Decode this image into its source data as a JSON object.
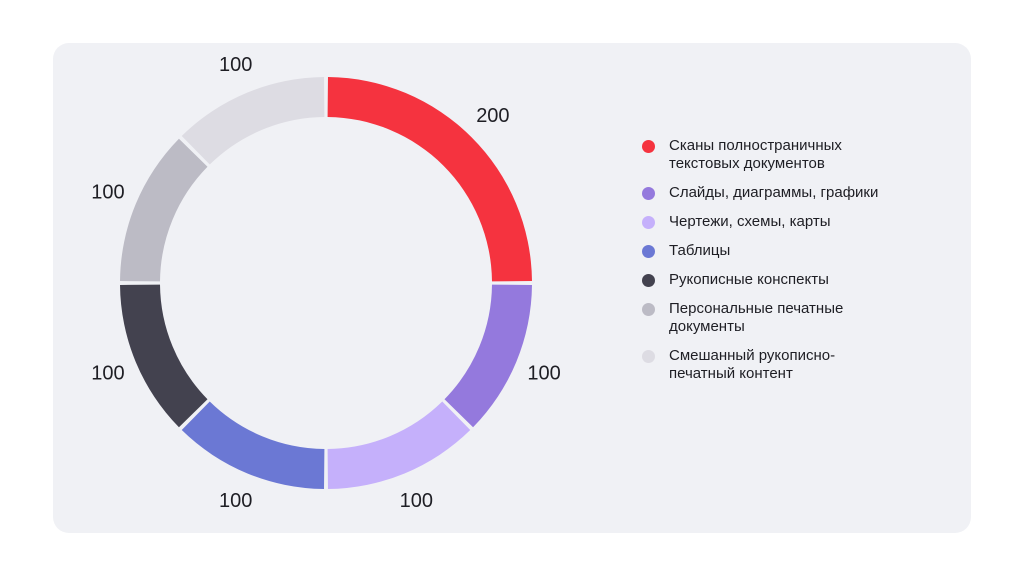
{
  "chart_data": {
    "type": "pie",
    "donut": true,
    "start": "top",
    "direction": "clockwise",
    "legend_position": "right",
    "categories": [
      "Сканы полностраничных текстовых документов",
      "Слайды, диаграммы, графики",
      "Чертежи, схемы, карты",
      "Таблицы",
      "Рукописные конспекты",
      "Персональные печатные документы",
      "Смешанный рукописно-печатный контент"
    ],
    "legend_lines": [
      [
        "Сканы полностраничных",
        "текстовых документов"
      ],
      [
        "Слайды, диаграммы, графики"
      ],
      [
        "Чертежи, схемы, карты"
      ],
      [
        "Таблицы"
      ],
      [
        "Рукописные конспекты"
      ],
      [
        "Персональные печатные",
        "документы"
      ],
      [
        "Смешанный рукописно-",
        "печатный контент"
      ]
    ],
    "values": [
      200,
      100,
      100,
      100,
      100,
      100,
      100
    ],
    "data_labels": [
      "200",
      "100",
      "100",
      "100",
      "100",
      "100",
      "100"
    ],
    "colors": [
      "#f5333f",
      "#9479dd",
      "#c5b0fb",
      "#6b78d4",
      "#43424f",
      "#bcbbc5",
      "#dddce3"
    ]
  }
}
